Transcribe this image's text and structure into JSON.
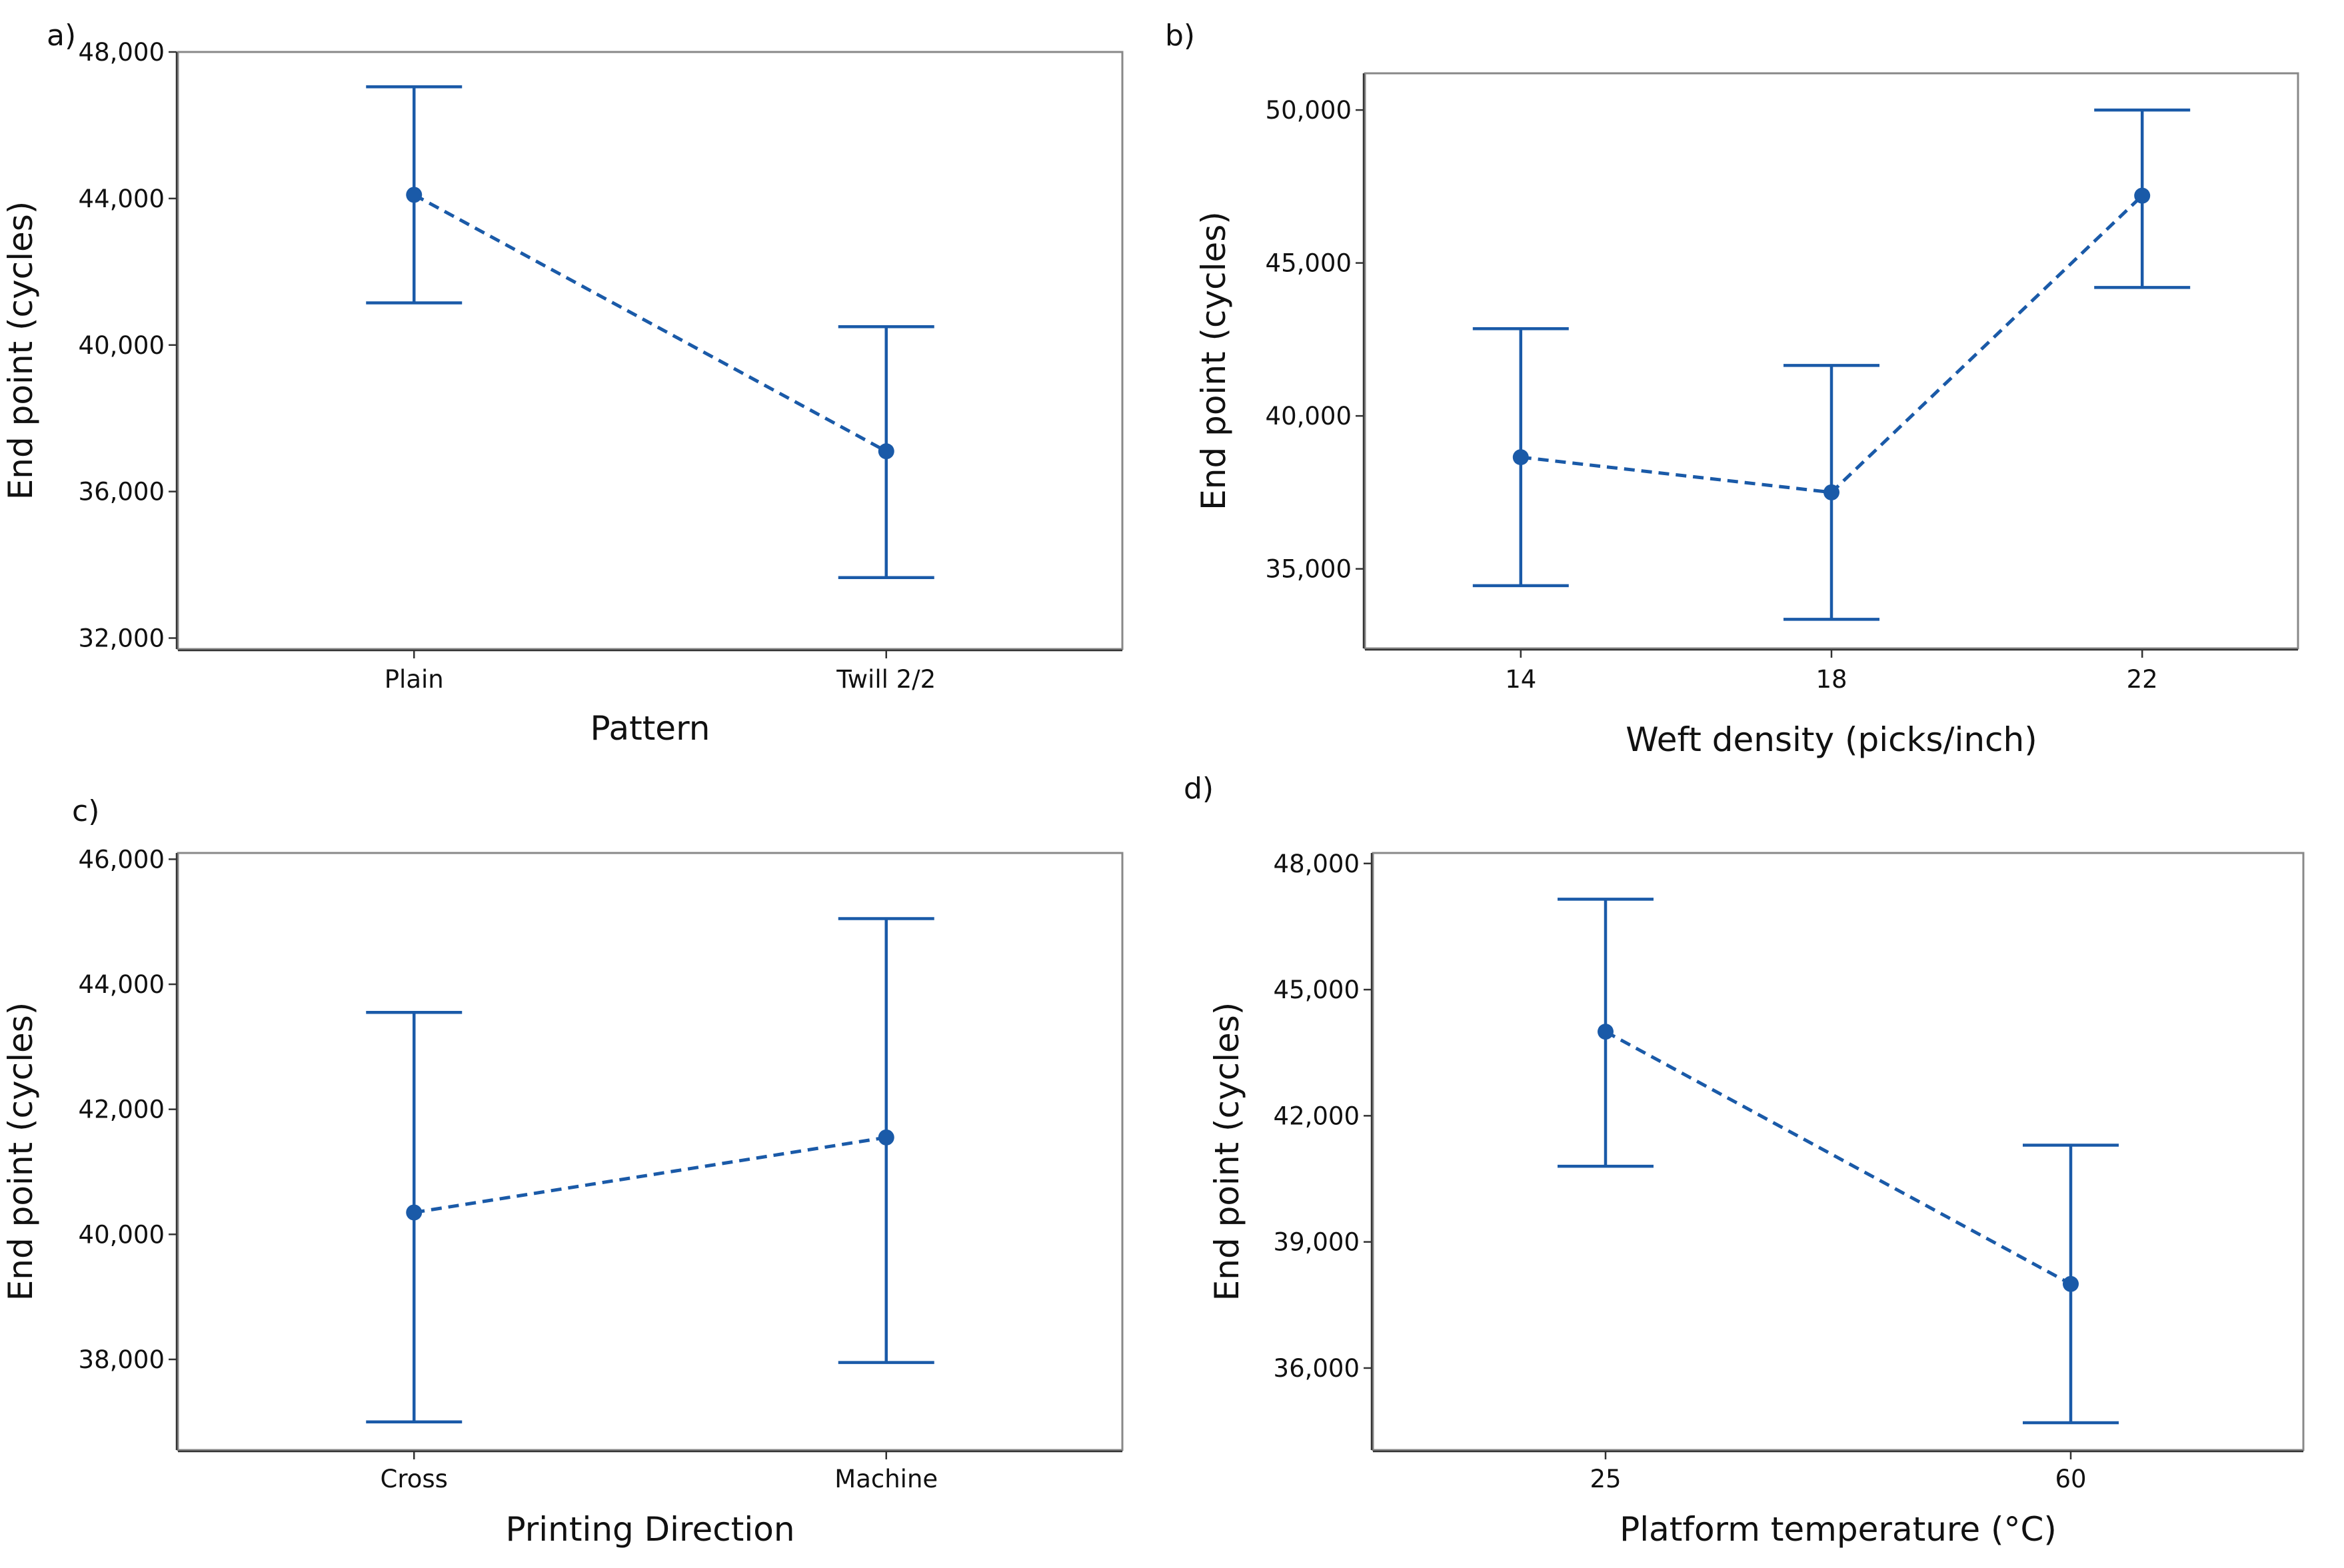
{
  "colors": {
    "series": "#1a5aa8",
    "frame": "#888888",
    "text": "#111111"
  },
  "chart_data": [
    {
      "type": "line",
      "panel_label": "a)",
      "title": "",
      "xlabel": "Pattern",
      "ylabel": "End point (cycles)",
      "categories": [
        "Plain",
        "Twill 2/2"
      ],
      "means": [
        44100,
        37100
      ],
      "lower": [
        41150,
        33650
      ],
      "upper": [
        47050,
        40500
      ],
      "ylim": [
        31700,
        48000
      ],
      "yticks": [
        32000,
        36000,
        40000,
        44000,
        48000
      ],
      "ytick_labels": [
        "32,000",
        "36,000",
        "40,000",
        "44,000",
        "48,000"
      ]
    },
    {
      "type": "line",
      "panel_label": "b)",
      "title": "",
      "xlabel": "Weft density (picks/inch)",
      "ylabel": "End point (cycles)",
      "categories": [
        "14",
        "18",
        "22"
      ],
      "means": [
        38650,
        37500,
        47200
      ],
      "lower": [
        34450,
        33350,
        44200
      ],
      "upper": [
        42850,
        41650,
        50000
      ],
      "ylim": [
        32400,
        51200
      ],
      "yticks": [
        35000,
        40000,
        45000,
        50000
      ],
      "ytick_labels": [
        "35,000",
        "40,000",
        "45,000",
        "50,000"
      ]
    },
    {
      "type": "line",
      "panel_label": "c)",
      "title": "",
      "xlabel": "Printing Direction",
      "ylabel": "End point (cycles)",
      "categories": [
        "Cross",
        "Machine"
      ],
      "means": [
        40350,
        41550
      ],
      "lower": [
        37000,
        37950
      ],
      "upper": [
        43550,
        45050
      ],
      "ylim": [
        36550,
        46100
      ],
      "yticks": [
        38000,
        40000,
        42000,
        44000,
        46000
      ],
      "ytick_labels": [
        "38,000",
        "40,000",
        "42,000",
        "44,000",
        "46,000"
      ]
    },
    {
      "type": "line",
      "panel_label": "d)",
      "title": "",
      "xlabel": "Platform temperature (°C)",
      "ylabel": "End point (cycles)",
      "categories": [
        "25",
        "60"
      ],
      "means": [
        44000,
        38000
      ],
      "lower": [
        40800,
        34700
      ],
      "upper": [
        47150,
        41300
      ],
      "ylim": [
        34050,
        48250
      ],
      "yticks": [
        36000,
        39000,
        42000,
        45000,
        48000
      ],
      "ytick_labels": [
        "36,000",
        "39,000",
        "42,000",
        "45,000",
        "48,000"
      ]
    }
  ]
}
